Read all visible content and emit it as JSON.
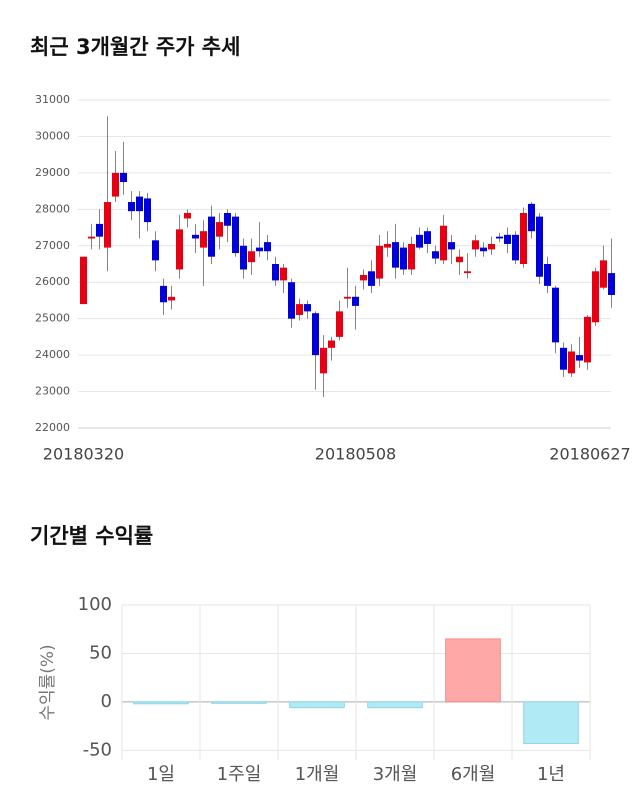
{
  "chart_data": [
    {
      "type": "candlestick",
      "title": "최근 3개월간 주가 추세",
      "categories": [
        "20180320",
        null,
        null,
        null,
        null,
        null,
        null,
        null,
        null,
        null,
        null,
        null,
        null,
        null,
        null,
        null,
        null,
        null,
        null,
        null,
        null,
        null,
        null,
        null,
        null,
        null,
        null,
        null,
        null,
        null,
        null,
        null,
        null,
        null,
        "20180508",
        null,
        null,
        null,
        null,
        null,
        null,
        null,
        null,
        null,
        null,
        null,
        null,
        null,
        null,
        null,
        null,
        null,
        null,
        null,
        null,
        null,
        null,
        null,
        null,
        null,
        null,
        null,
        null,
        null,
        null,
        null,
        "20180627"
      ],
      "open": [
        25400,
        27200,
        27600,
        26950,
        28350,
        29000,
        28200,
        28350,
        28300,
        27150,
        25900,
        25500,
        26350,
        27750,
        27300,
        26950,
        27800,
        27250,
        27900,
        27800,
        27000,
        26550,
        26950,
        27100,
        26500,
        26050,
        26000,
        25100,
        25400,
        25150,
        23500,
        24200,
        24500,
        25550,
        25600,
        26050,
        26300,
        26100,
        26950,
        27100,
        26950,
        26350,
        27300,
        27400,
        26850,
        26600,
        27100,
        26550,
        26250,
        26900,
        26950,
        26900,
        27250,
        27300,
        27300,
        26500,
        28150,
        27800,
        26500,
        25850,
        24200,
        23500,
        24000,
        23800,
        24900,
        25850,
        26250
      ],
      "high": [
        26700,
        27600,
        28000,
        30550,
        29600,
        29850,
        28500,
        28500,
        28450,
        27400,
        26100,
        25900,
        27850,
        28000,
        27600,
        27700,
        28100,
        27900,
        28000,
        27900,
        27200,
        27200,
        27650,
        27300,
        26700,
        26500,
        26100,
        25550,
        25500,
        25200,
        24550,
        24500,
        25500,
        26400,
        25900,
        26350,
        26600,
        27300,
        27400,
        27600,
        27100,
        27250,
        27500,
        27500,
        27000,
        27850,
        27300,
        26900,
        26800,
        27300,
        27100,
        27250,
        27350,
        27500,
        27400,
        28050,
        28200,
        27900,
        26700,
        25900,
        24350,
        24300,
        24500,
        25100,
        26400,
        27000,
        27200
      ],
      "low": [
        25400,
        26900,
        26900,
        26300,
        28200,
        28400,
        27700,
        27200,
        27400,
        26300,
        25100,
        25250,
        26100,
        27500,
        26800,
        25900,
        26500,
        26900,
        27100,
        26700,
        26100,
        26200,
        26700,
        26600,
        25900,
        25700,
        24750,
        24950,
        25000,
        23050,
        22850,
        23850,
        24400,
        25300,
        24700,
        25800,
        25700,
        25900,
        26700,
        26100,
        26200,
        26200,
        26900,
        26800,
        26500,
        26500,
        26500,
        26200,
        26100,
        26700,
        26700,
        26750,
        27100,
        26800,
        26500,
        26400,
        27200,
        25950,
        25700,
        24050,
        23400,
        23400,
        23650,
        23600,
        24800,
        25800,
        25300
      ],
      "close": [
        26700,
        27250,
        27250,
        28200,
        29000,
        28750,
        27950,
        27950,
        27650,
        26600,
        25450,
        25600,
        27450,
        27900,
        27200,
        27400,
        26700,
        27650,
        27550,
        26800,
        26350,
        26850,
        26850,
        26850,
        26050,
        26400,
        25000,
        25400,
        25200,
        24000,
        24200,
        24400,
        25200,
        25600,
        25350,
        26200,
        25900,
        27000,
        27050,
        26400,
        26350,
        27050,
        26950,
        27050,
        26650,
        27550,
        26900,
        26700,
        26300,
        27150,
        26850,
        27050,
        27200,
        27050,
        26600,
        27900,
        27400,
        26150,
        25900,
        24350,
        23600,
        24100,
        23850,
        25050,
        26300,
        26600,
        25650
      ],
      "up_color": "#e60012",
      "down_color": "#0000d9",
      "ylim": [
        22000,
        31000
      ],
      "yticks": [
        22000,
        23000,
        24000,
        25000,
        26000,
        27000,
        28000,
        29000,
        30000,
        31000
      ],
      "grid": true
    },
    {
      "type": "bar",
      "title": "기간별 수익률",
      "ylabel": "수익률(%)",
      "categories": [
        "1일",
        "1주일",
        "1개월",
        "3개월",
        "6개월",
        "1년"
      ],
      "values": [
        -2,
        -1.5,
        -6,
        -6,
        65,
        -43
      ],
      "positive_color": "#ffa8a8",
      "negative_color": "#b0ebf5",
      "ylim": [
        -60,
        100
      ],
      "yticks": [
        100,
        50,
        0,
        -50
      ],
      "grid": true
    }
  ]
}
